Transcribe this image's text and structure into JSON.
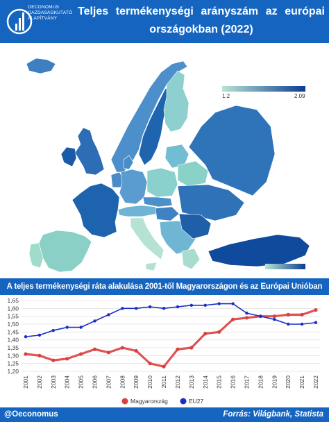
{
  "header": {
    "title": "Teljes termékenységi arányszám az európai országokban (2022)",
    "logo_line1": "OECONOMUS",
    "logo_line2": "GAZDASÁGKUTATÓ",
    "logo_line3": "ALAPÍTVÁNY"
  },
  "map": {
    "scale_min": "1.2",
    "scale_max": "2.09",
    "color_low": "#b9e4d4",
    "color_high": "#0b3d91"
  },
  "chart_header": {
    "title": "A teljes termékenységi ráta alakulása 2001-től Magyarországon és az Európai Unióban"
  },
  "chart_data": {
    "type": "line",
    "x": [
      "2001",
      "2002",
      "2003",
      "2004",
      "2005",
      "2006",
      "2007",
      "2008",
      "2009",
      "2010",
      "2011",
      "2012",
      "2013",
      "2014",
      "2015",
      "2016",
      "2017",
      "2018",
      "2019",
      "2020",
      "2021",
      "2022"
    ],
    "series": [
      {
        "name": "Magyarország",
        "color": "#d9413f",
        "values": [
          1.31,
          1.3,
          1.27,
          1.28,
          1.31,
          1.34,
          1.32,
          1.35,
          1.33,
          1.25,
          1.23,
          1.34,
          1.35,
          1.44,
          1.45,
          1.53,
          1.54,
          1.55,
          1.55,
          1.56,
          1.56,
          1.59
        ]
      },
      {
        "name": "EU27",
        "color": "#1a2fc2",
        "values": [
          1.42,
          1.43,
          1.46,
          1.48,
          1.48,
          1.52,
          1.56,
          1.6,
          1.6,
          1.61,
          1.6,
          1.61,
          1.62,
          1.62,
          1.63,
          1.63,
          1.57,
          1.55,
          1.53,
          1.5,
          1.5,
          1.51
        ]
      }
    ],
    "ylim": [
      1.2,
      1.65
    ],
    "yticks": [
      "1,20",
      "1,25",
      "1,30",
      "1,35",
      "1,40",
      "1,45",
      "1,50",
      "1,55",
      "1,60",
      "1,65"
    ],
    "grid": true,
    "legend": "bottom-center"
  },
  "footer": {
    "left": "@Oeconomus",
    "right": "Forrás: Világbank, Statista"
  }
}
